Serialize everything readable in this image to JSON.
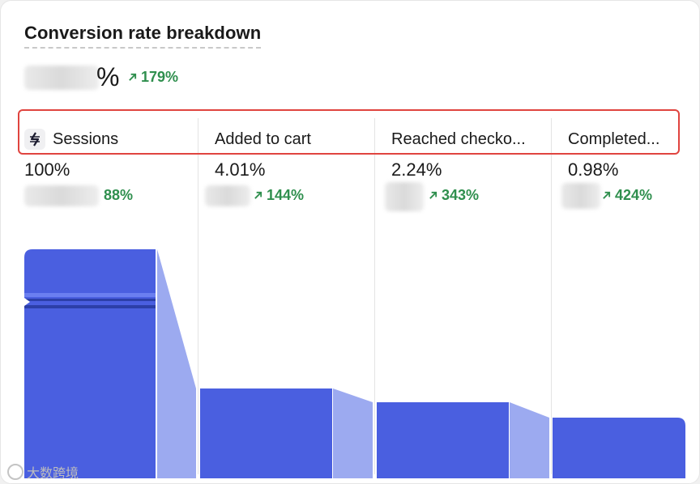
{
  "card": {
    "title": "Conversion rate breakdown",
    "headline_suffix": "%",
    "headline_trend": "179%"
  },
  "steps": [
    {
      "label": "Sessions",
      "value": "100%",
      "trend": "88%",
      "icon": "sessions-icon"
    },
    {
      "label": "Added to cart",
      "value": "4.01%",
      "trend": "144%"
    },
    {
      "label": "Reached checko...",
      "value": "2.24%",
      "trend": "343%"
    },
    {
      "label": "Completed...",
      "value": "0.98%",
      "trend": "424%"
    }
  ],
  "watermark": "大数跨境",
  "colors": {
    "bar": "#4a5fe0",
    "bar_light": "#9caaf0",
    "trend": "#2f8f4e",
    "highlight": "#e0443f"
  },
  "chart_data": {
    "type": "bar",
    "categories": [
      "Sessions",
      "Added to cart",
      "Reached checko...",
      "Completed..."
    ],
    "axis_break_on_first_bar": true
  }
}
